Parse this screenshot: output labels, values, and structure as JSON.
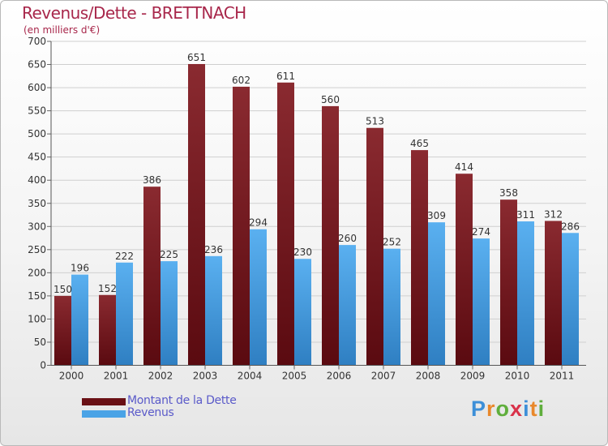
{
  "chart_data": {
    "type": "bar",
    "title": "Revenus/Dette - BRETTNACH",
    "subtitle": "(en milliers d'€)",
    "categories": [
      "2000",
      "2001",
      "2002",
      "2003",
      "2004",
      "2005",
      "2006",
      "2007",
      "2008",
      "2009",
      "2010",
      "2011"
    ],
    "series": [
      {
        "name": "Montant de la Dette",
        "values": [
          150,
          152,
          386,
          651,
          602,
          611,
          560,
          513,
          465,
          414,
          358,
          312
        ],
        "color": "#7a1a1f"
      },
      {
        "name": "Revenus",
        "values": [
          196,
          222,
          225,
          236,
          294,
          230,
          260,
          252,
          309,
          274,
          311,
          286
        ],
        "color": "#4aa3e6"
      }
    ],
    "ylim": [
      0,
      700
    ],
    "yticks": [
      0,
      50,
      100,
      150,
      200,
      250,
      300,
      350,
      400,
      450,
      500,
      550,
      600,
      650,
      700
    ],
    "grid": true,
    "legend": "bottom-left"
  },
  "logo": {
    "text": "Proxiti",
    "letter_colors": [
      "#3d8fd8",
      "#e9882b",
      "#5fae3c",
      "#d9324a",
      "#3d8fd8",
      "#e9882b",
      "#5fae3c"
    ]
  }
}
